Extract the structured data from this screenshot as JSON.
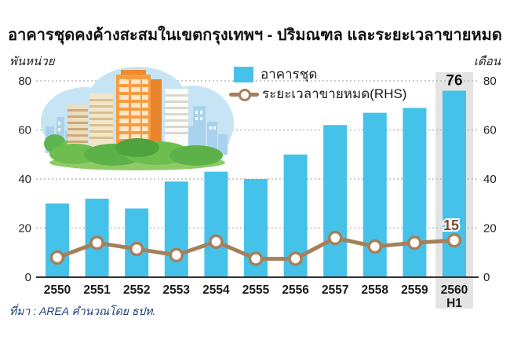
{
  "title": "อาคารชุดคงค้างสะสมในเขตกรุงเทพฯ - ปริมณฑล และระยะเวลาขายหมด",
  "legend": {
    "bar_label": "อาคารชุด",
    "line_label": "ระยะเวลาขายหมด(RHS)"
  },
  "source": "ที่มา : AREA คำนวณโดย ธปท.",
  "colors": {
    "bar": "#45C2E9",
    "line": "#A5805A",
    "marker_fill": "#FFFFFF",
    "highlight_band": "#E4E4E4",
    "gridline": "#BBBBBB",
    "axis_line": "#333333",
    "tick_text": "#222222",
    "bar_value_label": "#111111",
    "line_value_label": "#7B4A2D"
  },
  "chart_data": {
    "type": "bar+line combo",
    "title": "อาคารชุดคงค้างสะสมในเขตกรุงเทพฯ - ปริมณฑล และระยะเวลาขายหมด",
    "categories": [
      {
        "label": "2550"
      },
      {
        "label": "2551"
      },
      {
        "label": "2552"
      },
      {
        "label": "2553"
      },
      {
        "label": "2554"
      },
      {
        "label": "2555"
      },
      {
        "label": "2556"
      },
      {
        "label": "2557"
      },
      {
        "label": "2558"
      },
      {
        "label": "2559"
      },
      {
        "label": "2560",
        "sublabel": "H1",
        "highlight": true
      }
    ],
    "series": [
      {
        "name": "อาคารชุด",
        "type": "bar",
        "axis": "left",
        "values": [
          30,
          32,
          28,
          39,
          43,
          40,
          50,
          62,
          67,
          69,
          76
        ]
      },
      {
        "name": "ระยะเวลาขายหมด(RHS)",
        "type": "line",
        "axis": "right",
        "values": [
          8,
          14,
          11.5,
          9,
          14.5,
          7.5,
          7.5,
          16,
          12.5,
          14,
          15
        ]
      }
    ],
    "left_axis": {
      "label": "พันหน่วย",
      "ticks": [
        0,
        20,
        40,
        60,
        80
      ],
      "range": [
        0,
        80
      ]
    },
    "right_axis": {
      "label": "เดือน",
      "ticks": [
        0,
        20,
        40,
        60,
        80
      ],
      "range": [
        0,
        80
      ]
    },
    "annotations": [
      {
        "category_index": 10,
        "bar_value_label": "76",
        "line_value_label": "15",
        "highlighted": true
      }
    ],
    "grid": "dotted horizontal",
    "legend_position": "top-center"
  }
}
